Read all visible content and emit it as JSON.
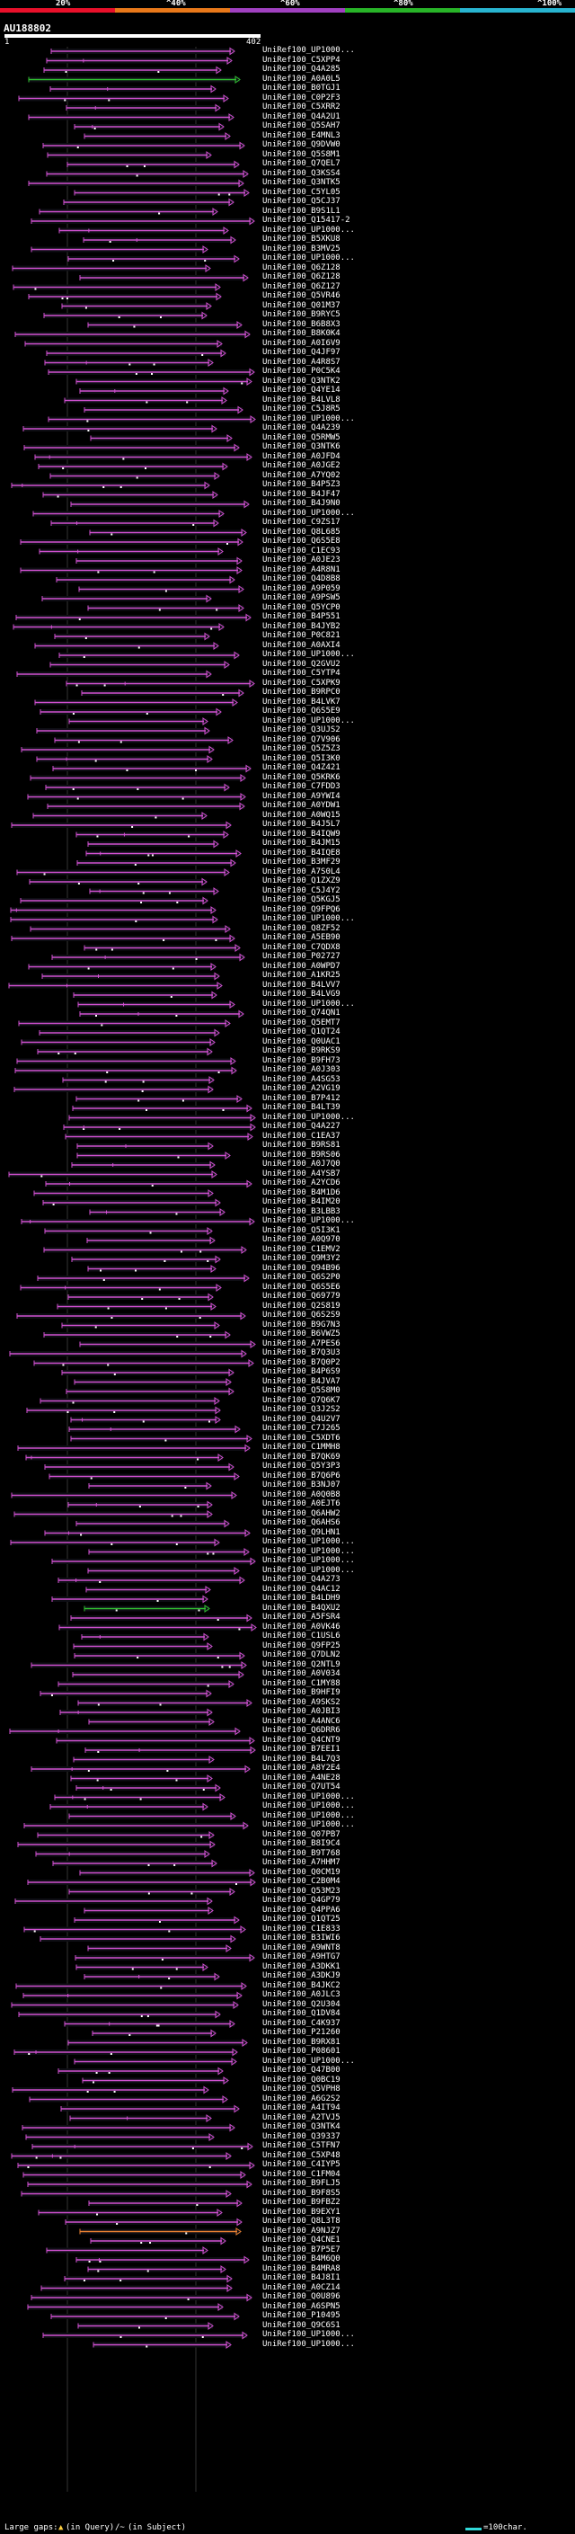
{
  "legend": {
    "labels": [
      "20%",
      "^40%",
      "^60%",
      "^80%",
      "^100%"
    ],
    "colors": [
      "#e8102a",
      "#e8781a",
      "#a040c0",
      "#28b428",
      "#28b4d0"
    ]
  },
  "query": {
    "id": "AU188802",
    "start": "1",
    "end": "402"
  },
  "colors": {
    "hit": "#d050d0",
    "hit_green": "#30c030",
    "hit_orange": "#e88030",
    "gap": "#111",
    "text": "#fff",
    "bg": "#000"
  },
  "hits": [
    {
      "label": "UniRef100_UP1000..."
    },
    {
      "label": "UniRef100_C5XPP4"
    },
    {
      "label": "UniRef100_Q4A285"
    },
    {
      "label": "UniRef100_A0A0L5"
    },
    {
      "label": "UniRef100_B0TGJ1"
    },
    {
      "label": "UniRef100_C0P2F3"
    },
    {
      "label": "UniRef100_C5XRR2"
    },
    {
      "label": "UniRef100_Q4A2U1"
    },
    {
      "label": "UniRef100_Q5SAH7"
    },
    {
      "label": "UniRef100_E4MNL3"
    },
    {
      "label": "UniRef100_Q9DVW0"
    },
    {
      "label": "UniRef100_Q5S8M1"
    },
    {
      "label": "UniRef100_Q7QEL7"
    },
    {
      "label": "UniRef100_Q3KSS4"
    },
    {
      "label": "UniRef100_Q3NTK5"
    },
    {
      "label": "UniRef100_C5YL05"
    },
    {
      "label": "UniRef100_Q5CJ37"
    },
    {
      "label": "UniRef100_B9S1L1"
    },
    {
      "label": "UniRef100_Q15417-2"
    },
    {
      "label": "UniRef100_UP1000..."
    },
    {
      "label": "UniRef100_B5XKU8"
    },
    {
      "label": "UniRef100_B3MV25"
    },
    {
      "label": "UniRef100_UP1000..."
    },
    {
      "label": "UniRef100_Q6Z128"
    },
    {
      "label": "UniRef100_Q6Z128"
    },
    {
      "label": "UniRef100_Q6Z127"
    },
    {
      "label": "UniRef100_Q5VR46"
    },
    {
      "label": "UniRef100_Q01M37"
    },
    {
      "label": "UniRef100_B9RYC5"
    },
    {
      "label": "UniRef100_B6B8X3"
    },
    {
      "label": "UniRef100_B8K0K4"
    },
    {
      "label": "UniRef100_A0I6V9"
    },
    {
      "label": "UniRef100_Q4JF97"
    },
    {
      "label": "UniRef100_A4R8S7"
    },
    {
      "label": "UniRef100_P0C5K4"
    },
    {
      "label": "UniRef100_Q3NTK2"
    },
    {
      "label": "UniRef100_Q4YE14"
    },
    {
      "label": "UniRef100_B4LVL8"
    },
    {
      "label": "UniRef100_C5J8R5"
    },
    {
      "label": "UniRef100_UP1000..."
    },
    {
      "label": "UniRef100_Q4A239"
    },
    {
      "label": "UniRef100_Q5RMW5"
    },
    {
      "label": "UniRef100_Q3NTK6"
    },
    {
      "label": "UniRef100_A0JFD4"
    },
    {
      "label": "UniRef100_A0JGE2"
    },
    {
      "label": "UniRef100_A7YQ02"
    },
    {
      "label": "UniRef100_B4P5Z3"
    },
    {
      "label": "UniRef100_B4JF47"
    },
    {
      "label": "UniRef100_B4J9N0"
    },
    {
      "label": "UniRef100_UP1000..."
    },
    {
      "label": "UniRef100_C9ZS17"
    },
    {
      "label": "UniRef100_Q8L685"
    },
    {
      "label": "UniRef100_Q6S5E8"
    },
    {
      "label": "UniRef100_C1EC93"
    },
    {
      "label": "UniRef100_A0JE23"
    },
    {
      "label": "UniRef100_A4R8N1"
    },
    {
      "label": "UniRef100_Q4D8B8"
    },
    {
      "label": "UniRef100_A9P059"
    },
    {
      "label": "UniRef100_A9PSW5"
    },
    {
      "label": "UniRef100_Q5YCP0"
    },
    {
      "label": "UniRef100_B4P551"
    },
    {
      "label": "UniRef100_B4JYB2"
    },
    {
      "label": "UniRef100_P0C821"
    },
    {
      "label": "UniRef100_A0AXI4"
    },
    {
      "label": "UniRef100_UP1000..."
    },
    {
      "label": "UniRef100_Q2GVU2"
    },
    {
      "label": "UniRef100_C5YTP4"
    },
    {
      "label": "UniRef100_C5XPK9"
    },
    {
      "label": "UniRef100_B9RPC0"
    },
    {
      "label": "UniRef100_B4LVK7"
    },
    {
      "label": "UniRef100_Q6S5E9"
    },
    {
      "label": "UniRef100_UP1000..."
    },
    {
      "label": "UniRef100_Q3UJS2"
    },
    {
      "label": "UniRef100_Q7V906"
    },
    {
      "label": "UniRef100_Q5Z5Z3"
    },
    {
      "label": "UniRef100_Q5I3K0"
    },
    {
      "label": "UniRef100_Q4Z421"
    },
    {
      "label": "UniRef100_Q5KRK6"
    },
    {
      "label": "UniRef100_C7FDD3"
    },
    {
      "label": "UniRef100_A9YWI4"
    },
    {
      "label": "UniRef100_A0YDW1"
    },
    {
      "label": "UniRef100_A0WQ15"
    },
    {
      "label": "UniRef100_B4J5L7"
    },
    {
      "label": "UniRef100_B4IQW9"
    },
    {
      "label": "UniRef100_B4JM15"
    },
    {
      "label": "UniRef100_B4IQE8"
    },
    {
      "label": "UniRef100_B3MF29"
    },
    {
      "label": "UniRef100_A7S0L4"
    },
    {
      "label": "UniRef100_Q1ZXZ9"
    },
    {
      "label": "UniRef100_C5J4Y2"
    },
    {
      "label": "UniRef100_Q5KGJ5"
    },
    {
      "label": "UniRef100_Q9FPQ6"
    },
    {
      "label": "UniRef100_UP1000..."
    },
    {
      "label": "UniRef100_Q8ZF52"
    },
    {
      "label": "UniRef100_A5EB90"
    },
    {
      "label": "UniRef100_C7QDX8"
    },
    {
      "label": "UniRef100_P02727"
    },
    {
      "label": "UniRef100_A0WPD7"
    },
    {
      "label": "UniRef100_A1KR25"
    },
    {
      "label": "UniRef100_B4LVV7"
    },
    {
      "label": "UniRef100_B4LVG9"
    },
    {
      "label": "UniRef100_UP1000..."
    },
    {
      "label": "UniRef100_Q74QN1"
    },
    {
      "label": "UniRef100_Q5EMT7"
    },
    {
      "label": "UniRef100_Q1QT24"
    },
    {
      "label": "UniRef100_Q0UAC1"
    },
    {
      "label": "UniRef100_B9RKS9"
    },
    {
      "label": "UniRef100_B9FH73"
    },
    {
      "label": "UniRef100_A0J303"
    },
    {
      "label": "UniRef100_A4SG53"
    },
    {
      "label": "UniRef100_A2VG19"
    },
    {
      "label": "UniRef100_B7P412"
    },
    {
      "label": "UniRef100_B4LT39"
    },
    {
      "label": "UniRef100_UP1000..."
    },
    {
      "label": "UniRef100_Q4A227"
    },
    {
      "label": "UniRef100_C1EA37"
    },
    {
      "label": "UniRef100_B9RS81"
    },
    {
      "label": "UniRef100_B9RS06"
    },
    {
      "label": "UniRef100_A0J7Q0"
    },
    {
      "label": "UniRef100_A4YSB7"
    },
    {
      "label": "UniRef100_A2YCD6"
    },
    {
      "label": "UniRef100_B4M1D6"
    },
    {
      "label": "UniRef100_B4IM20"
    },
    {
      "label": "UniRef100_B3LBB3"
    },
    {
      "label": "UniRef100_UP1000..."
    },
    {
      "label": "UniRef100_Q5I3K1"
    },
    {
      "label": "UniRef100_A0Q970"
    },
    {
      "label": "UniRef100_C1EMV2"
    },
    {
      "label": "UniRef100_Q9M3Y2"
    },
    {
      "label": "UniRef100_Q94B96"
    },
    {
      "label": "UniRef100_Q6S2P0"
    },
    {
      "label": "UniRef100_Q6S5E6"
    },
    {
      "label": "UniRef100_Q69779"
    },
    {
      "label": "UniRef100_Q2S819"
    },
    {
      "label": "UniRef100_Q6S2S9"
    },
    {
      "label": "UniRef100_B9G7N3"
    },
    {
      "label": "UniRef100_B6VWZ5"
    },
    {
      "label": "UniRef100_A7PES6"
    },
    {
      "label": "UniRef100_B7Q3U3"
    },
    {
      "label": "UniRef100_B7Q0P2"
    },
    {
      "label": "UniRef100_B4P6S9"
    },
    {
      "label": "UniRef100_B4JVA7"
    },
    {
      "label": "UniRef100_Q5S8M0"
    },
    {
      "label": "UniRef100_Q7Q6K7"
    },
    {
      "label": "UniRef100_Q3J2S2"
    },
    {
      "label": "UniRef100_Q4U2V7"
    },
    {
      "label": "UniRef100_C7J265"
    },
    {
      "label": "UniRef100_C5XDT6"
    },
    {
      "label": "UniRef100_C1MMH8"
    },
    {
      "label": "UniRef100_B7QK69"
    },
    {
      "label": "UniRef100_Q5Y3P3"
    },
    {
      "label": "UniRef100_B7Q6P6"
    },
    {
      "label": "UniRef100_B3NJ07"
    },
    {
      "label": "UniRef100_A0Q0B8"
    },
    {
      "label": "UniRef100_A0EJT6"
    },
    {
      "label": "UniRef100_Q6AHW2"
    },
    {
      "label": "UniRef100_Q6AHS6"
    },
    {
      "label": "UniRef100_Q9LHN1"
    },
    {
      "label": "UniRef100_UP1000..."
    },
    {
      "label": "UniRef100_UP1000..."
    },
    {
      "label": "UniRef100_UP1000..."
    },
    {
      "label": "UniRef100_UP1000..."
    },
    {
      "label": "UniRef100_Q4A273"
    },
    {
      "label": "UniRef100_Q4AC12"
    },
    {
      "label": "UniRef100_B4LDH9"
    },
    {
      "label": "UniRef100_B4QXU2"
    },
    {
      "label": "UniRef100_A5FSR4"
    },
    {
      "label": "UniRef100_A0VK46"
    },
    {
      "label": "UniRef100_C1USL6"
    },
    {
      "label": "UniRef100_Q9FP25"
    },
    {
      "label": "UniRef100_Q7DLN2"
    },
    {
      "label": "UniRef100_Q2NTL9"
    },
    {
      "label": "UniRef100_A0V034"
    },
    {
      "label": "UniRef100_C1MY88"
    },
    {
      "label": "UniRef100_B9HFI9"
    },
    {
      "label": "UniRef100_A9SKS2"
    },
    {
      "label": "UniRef100_A0JBI3"
    },
    {
      "label": "UniRef100_A4ANC6"
    },
    {
      "label": "UniRef100_Q6DRR6"
    },
    {
      "label": "UniRef100_Q4CNT9"
    },
    {
      "label": "UniRef100_B7EEI1"
    },
    {
      "label": "UniRef100_B4L7Q3"
    },
    {
      "label": "UniRef100_A8Y2E4"
    },
    {
      "label": "UniRef100_A4NE28"
    },
    {
      "label": "UniRef100_Q7UT54"
    },
    {
      "label": "UniRef100_UP1000..."
    },
    {
      "label": "UniRef100_UP1000..."
    },
    {
      "label": "UniRef100_UP1000..."
    },
    {
      "label": "UniRef100_UP1000..."
    },
    {
      "label": "UniRef100_Q07PB7"
    },
    {
      "label": "UniRef100_B8I9C4"
    },
    {
      "label": "UniRef100_B9T768"
    },
    {
      "label": "UniRef100_A7HHM7"
    },
    {
      "label": "UniRef100_Q0CM19"
    },
    {
      "label": "UniRef100_C2B0M4"
    },
    {
      "label": "UniRef100_Q53M23"
    },
    {
      "label": "UniRef100_Q4GP79"
    },
    {
      "label": "UniRef100_Q4PPA6"
    },
    {
      "label": "UniRef100_Q1QT25"
    },
    {
      "label": "UniRef100_C1E833"
    },
    {
      "label": "UniRef100_B3IWI6"
    },
    {
      "label": "UniRef100_A9WNT8"
    },
    {
      "label": "UniRef100_A9HTG7"
    },
    {
      "label": "UniRef100_A3DKK1"
    },
    {
      "label": "UniRef100_A3DKJ9"
    },
    {
      "label": "UniRef100_B4JKC2"
    },
    {
      "label": "UniRef100_A0JLC3"
    },
    {
      "label": "UniRef100_Q2U304"
    },
    {
      "label": "UniRef100_Q1DV84"
    },
    {
      "label": "UniRef100_C4K937"
    },
    {
      "label": "UniRef100_P21260"
    },
    {
      "label": "UniRef100_B9RX81"
    },
    {
      "label": "UniRef100_P08601"
    },
    {
      "label": "UniRef100_UP1000..."
    },
    {
      "label": "UniRef100_Q47B00"
    },
    {
      "label": "UniRef100_Q0BC19"
    },
    {
      "label": "UniRef100_Q5VPH8"
    },
    {
      "label": "UniRef100_A6G2S2"
    },
    {
      "label": "UniRef100_A4IT94"
    },
    {
      "label": "UniRef100_A2TVJ5"
    },
    {
      "label": "UniRef100_Q3NTK4"
    },
    {
      "label": "UniRef100_Q39337"
    },
    {
      "label": "UniRef100_C5TFN7"
    },
    {
      "label": "UniRef100_C5XP48"
    },
    {
      "label": "UniRef100_C4IYP5"
    },
    {
      "label": "UniRef100_C1FM04"
    },
    {
      "label": "UniRef100_B9FLJ5"
    },
    {
      "label": "UniRef100_B9F8S5"
    },
    {
      "label": "UniRef100_B9FBZ2"
    },
    {
      "label": "UniRef100_B9EXY1"
    },
    {
      "label": "UniRef100_Q8L3T8"
    },
    {
      "label": "UniRef100_A9NJZ7"
    },
    {
      "label": "UniRef100_Q4CNE1"
    },
    {
      "label": "UniRef100_B7P5E7"
    },
    {
      "label": "UniRef100_B4M6Q0"
    },
    {
      "label": "UniRef100_B4MRA8"
    },
    {
      "label": "UniRef100_B4J8I1"
    },
    {
      "label": "UniRef100_A0CZ14"
    },
    {
      "label": "UniRef100_Q0U896"
    },
    {
      "label": "UniRef100_A6SPN5"
    },
    {
      "label": "UniRef100_P10495"
    },
    {
      "label": "UniRef100_Q9C6S1"
    },
    {
      "label": "UniRef100_UP1000..."
    },
    {
      "label": "UniRef100_UP1000..."
    }
  ],
  "footer": {
    "gaps_label": "Large gaps:",
    "query_gap": "(in Query)",
    "subject_gap": "(in Subject)",
    "scale": "=100char."
  }
}
